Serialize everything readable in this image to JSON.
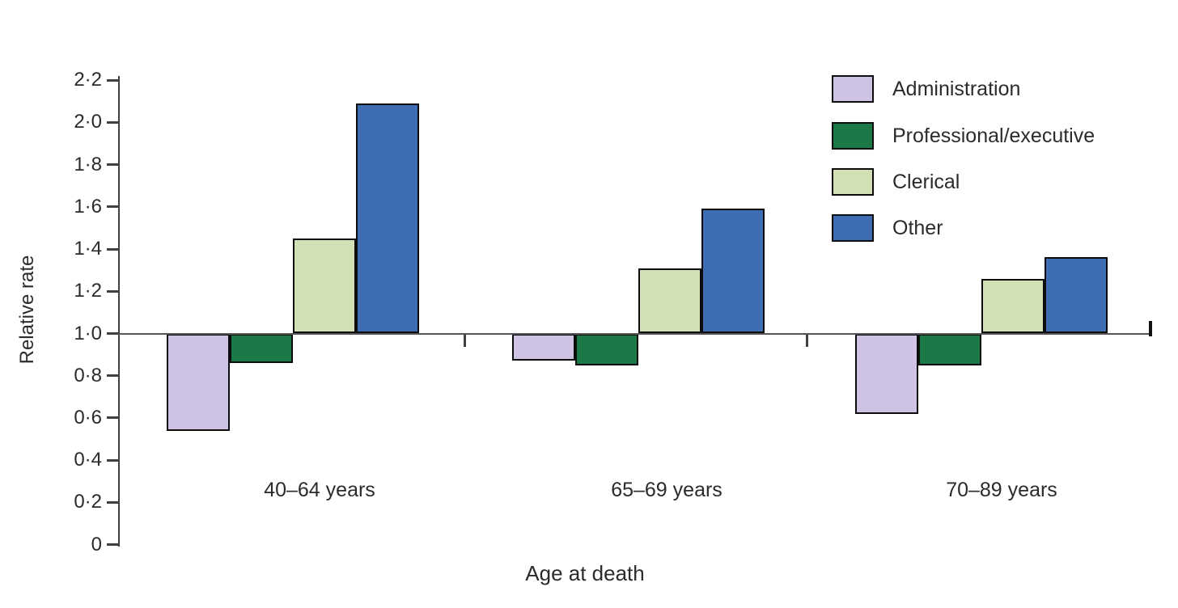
{
  "chart_data": {
    "type": "bar",
    "title": "",
    "xlabel": "Age at death",
    "ylabel": "Relative rate",
    "baseline": 1.0,
    "ylim": [
      0,
      2.2
    ],
    "grid": false,
    "legend_position": "top-right",
    "axis_color": "#3f3f3f",
    "bar_outline_color": "#0d0d0d",
    "ytick_labels": [
      "2·2",
      "2·0",
      "1·8",
      "1·6",
      "1·4",
      "1·2",
      "1·0",
      "0·8",
      "0·6",
      "0·4",
      "0·2",
      "0"
    ],
    "ytick_values": [
      2.2,
      2.0,
      1.8,
      1.6,
      1.4,
      1.2,
      1.0,
      0.8,
      0.6,
      0.4,
      0.2,
      0
    ],
    "categories": [
      "40–64 years",
      "65–69 years",
      "70–89 years"
    ],
    "series": [
      {
        "name": "Administration",
        "color": "#cec3e2",
        "values": [
          0.54,
          0.87,
          0.62
        ]
      },
      {
        "name": "Professional/executive",
        "color": "#1a7946",
        "values": [
          0.86,
          0.85,
          0.85
        ]
      },
      {
        "name": "Clerical",
        "color": "#d2e1b5",
        "values": [
          1.45,
          1.31,
          1.26
        ]
      },
      {
        "name": "Other",
        "color": "#3e6db4",
        "values": [
          2.09,
          1.59,
          1.36
        ]
      }
    ]
  }
}
